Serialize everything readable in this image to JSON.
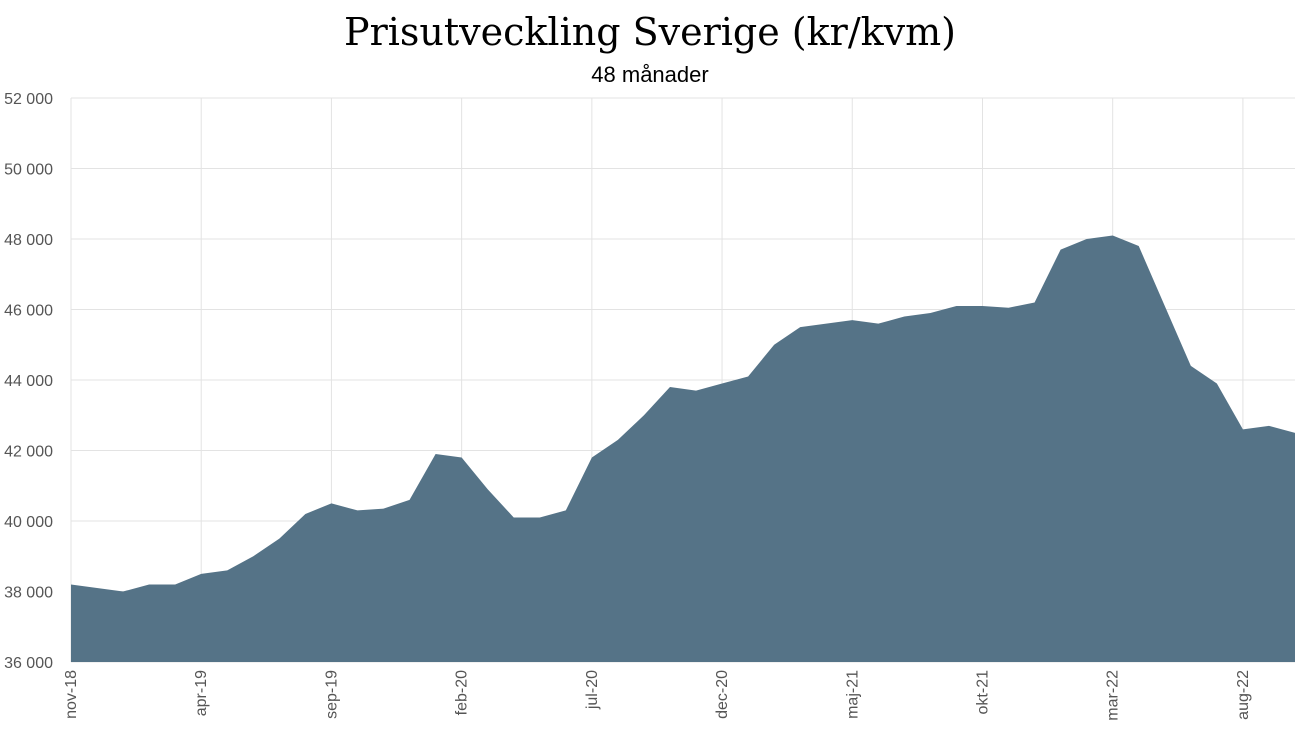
{
  "chart_data": {
    "type": "area",
    "title": "Prisutveckling Sverige (kr/kvm)",
    "subtitle": "48 månader",
    "xlabel": "",
    "ylabel": "",
    "ylim": [
      36000,
      52000
    ],
    "yticks": [
      36000,
      38000,
      40000,
      42000,
      44000,
      46000,
      48000,
      50000,
      52000
    ],
    "ytick_labels": [
      "36 000",
      "38 000",
      "40 000",
      "42 000",
      "44 000",
      "46 000",
      "48 000",
      "50 000",
      "52 000"
    ],
    "x_tick_labels": [
      "nov-18",
      "apr-19",
      "sep-19",
      "feb-20",
      "jul-20",
      "dec-20",
      "maj-21",
      "okt-21",
      "mar-22",
      "aug-22"
    ],
    "x_tick_every": 5,
    "grid": true,
    "color": "#557387",
    "series": [
      {
        "values": [
          38200,
          38100,
          38000,
          38200,
          38200,
          38500,
          38600,
          39000,
          39500,
          40200,
          40500,
          40300,
          40350,
          40600,
          41900,
          41800,
          40900,
          40100,
          40100,
          40300,
          41800,
          42300,
          43000,
          43800,
          43700,
          43900,
          44100,
          45000,
          45500,
          45600,
          45700,
          45600,
          45800,
          45900,
          46100,
          46100,
          46050,
          46200,
          47700,
          48000,
          48100,
          47800,
          46100,
          44400,
          43900,
          42600,
          42700,
          42500
        ]
      }
    ]
  }
}
